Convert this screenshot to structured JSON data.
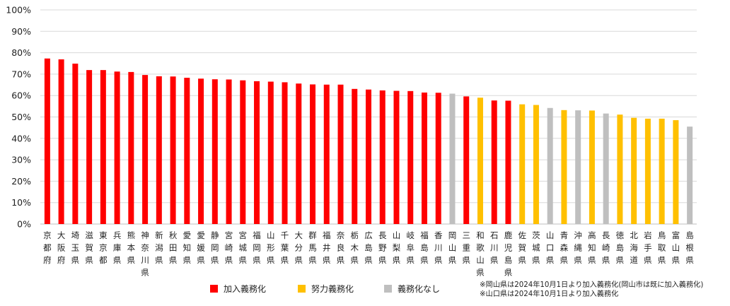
{
  "chart_data": {
    "type": "bar",
    "title": "",
    "xlabel": "",
    "ylabel": "",
    "ylim": [
      0,
      100
    ],
    "yticks": [
      "0%",
      "10%",
      "20%",
      "30%",
      "40%",
      "50%",
      "60%",
      "70%",
      "80%",
      "90%",
      "100%"
    ],
    "grid": true,
    "legend_position": "bottom",
    "legend": [
      {
        "key": "mandatory",
        "label": "加入義務化",
        "color": "#ff0000"
      },
      {
        "key": "effort",
        "label": "努力義務化",
        "color": "#ffc000"
      },
      {
        "key": "none",
        "label": "義務化なし",
        "color": "#bfbfbf"
      }
    ],
    "categories": [
      "京都府",
      "大阪府",
      "埼玉県",
      "滋賀県",
      "東京都",
      "兵庫県",
      "熊本県",
      "神奈川県",
      "新潟県",
      "秋田県",
      "愛知県",
      "愛媛県",
      "静岡県",
      "宮崎県",
      "宮城県",
      "福岡県",
      "山形県",
      "千葉県",
      "大分県",
      "群馬県",
      "福井県",
      "奈良県",
      "栃木県",
      "広島県",
      "長野県",
      "山梨県",
      "岐阜県",
      "福島県",
      "香川県",
      "岡山県",
      "三重県",
      "和歌山県",
      "石川県",
      "鹿児島県",
      "佐賀県",
      "茨城県",
      "山口県",
      "青森県",
      "沖縄県",
      "高知県",
      "長崎県",
      "徳島県",
      "北海道",
      "岩手県",
      "鳥取県",
      "富山県",
      "島根県"
    ],
    "values": [
      77.3,
      76.9,
      74.9,
      71.9,
      71.9,
      71.2,
      71.0,
      69.6,
      69.0,
      68.9,
      68.3,
      67.9,
      67.6,
      67.5,
      67.1,
      66.7,
      66.5,
      66.2,
      65.6,
      65.2,
      65.1,
      65.1,
      63.1,
      62.8,
      62.4,
      62.2,
      62.1,
      61.4,
      61.3,
      60.9,
      59.6,
      59.0,
      57.7,
      57.6,
      55.9,
      55.6,
      54.2,
      53.2,
      53.1,
      53.0,
      51.6,
      51.1,
      49.6,
      49.2,
      49.2,
      48.5,
      45.5
    ],
    "status": [
      "mandatory",
      "mandatory",
      "mandatory",
      "mandatory",
      "mandatory",
      "mandatory",
      "mandatory",
      "mandatory",
      "mandatory",
      "mandatory",
      "mandatory",
      "mandatory",
      "mandatory",
      "mandatory",
      "mandatory",
      "mandatory",
      "mandatory",
      "mandatory",
      "mandatory",
      "mandatory",
      "mandatory",
      "mandatory",
      "mandatory",
      "mandatory",
      "mandatory",
      "mandatory",
      "mandatory",
      "mandatory",
      "mandatory",
      "none",
      "mandatory",
      "effort",
      "mandatory",
      "mandatory",
      "effort",
      "effort",
      "none",
      "effort",
      "none",
      "effort",
      "none",
      "effort",
      "effort",
      "effort",
      "effort",
      "effort",
      "none"
    ],
    "notes": [
      "※岡山県は2024年10月1日より加入義務化(岡山市は既に加入義務化)",
      "※山口県は2024年10月1日より加入義務化"
    ]
  }
}
